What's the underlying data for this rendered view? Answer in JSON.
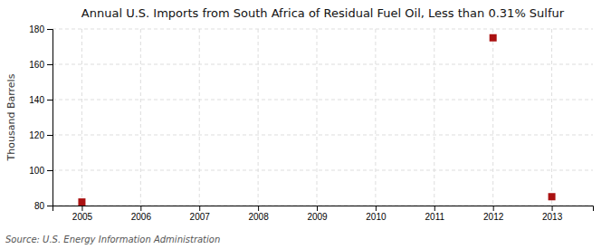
{
  "chart_data": {
    "type": "scatter",
    "title": "Annual U.S. Imports from South Africa of Residual Fuel Oil, Less than 0.31% Sulfur",
    "ylabel": "Thousand Barrels",
    "source": "Source: U.S. Energy Information Administration",
    "x": [
      2005,
      2006,
      2007,
      2008,
      2009,
      2010,
      2011,
      2012,
      2013
    ],
    "values": [
      82,
      null,
      null,
      null,
      null,
      null,
      null,
      175,
      85
    ],
    "xlim": [
      2004.5,
      2013.7
    ],
    "ylim": [
      80,
      180
    ],
    "xticks": [
      2005,
      2006,
      2007,
      2008,
      2009,
      2010,
      2011,
      2012,
      2013
    ],
    "yticks": [
      80,
      100,
      120,
      140,
      160,
      180
    ],
    "color": "#aa1111",
    "marker": "square",
    "grid": true
  }
}
